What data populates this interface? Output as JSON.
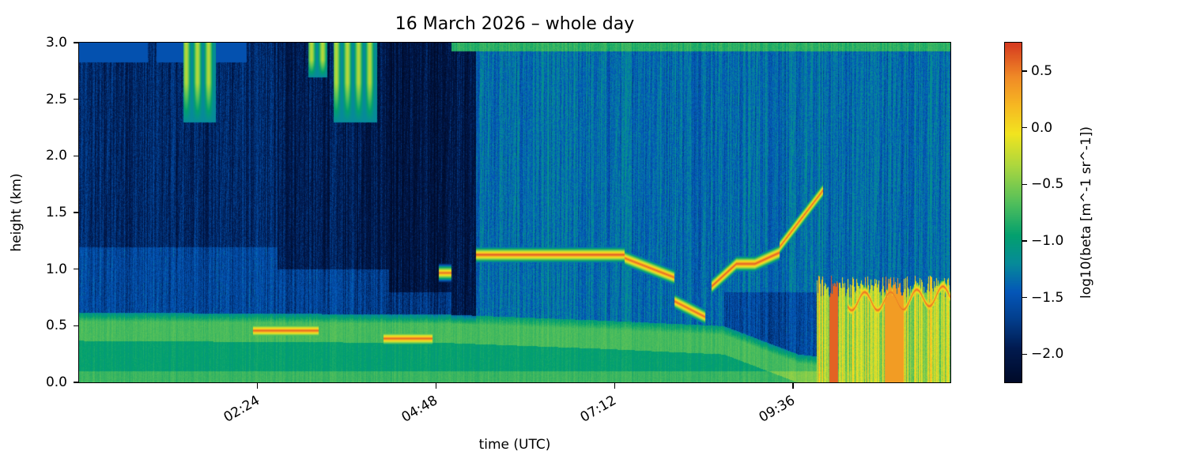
{
  "chart_data": {
    "type": "heatmap",
    "title": "16 March 2026 – whole day",
    "xlabel": "time (UTC)",
    "ylabel": "height (km)",
    "colorbar_label": "log10(beta [m^-1 sr^-1])",
    "xlim_minutes": [
      0,
      703
    ],
    "ylim": [
      0.0,
      3.0
    ],
    "clim": [
      -2.25,
      0.75
    ],
    "colormap": "blue-green-yellow-red (ceilometer backscatter)",
    "x_ticks": [
      {
        "label": "02:24",
        "minutes": 144
      },
      {
        "label": "04:48",
        "minutes": 288
      },
      {
        "label": "07:12",
        "minutes": 432
      },
      {
        "label": "09:36",
        "minutes": 576
      }
    ],
    "y_ticks": [
      {
        "label": "0.0",
        "value": 0.0
      },
      {
        "label": "0.5",
        "value": 0.5
      },
      {
        "label": "1.0",
        "value": 1.0
      },
      {
        "label": "1.5",
        "value": 1.5
      },
      {
        "label": "2.0",
        "value": 2.0
      },
      {
        "label": "2.5",
        "value": 2.5
      },
      {
        "label": "3.0",
        "value": 3.0
      }
    ],
    "colorbar_ticks": [
      {
        "label": "0.5",
        "value": 0.5
      },
      {
        "label": "0.0",
        "value": 0.0
      },
      {
        "label": "−0.5",
        "value": -0.5
      },
      {
        "label": "−1.0",
        "value": -1.0
      },
      {
        "label": "−1.5",
        "value": -1.5
      },
      {
        "label": "−2.0",
        "value": -2.0
      }
    ],
    "colormap_stops": [
      {
        "v": -2.25,
        "color": "#000a28"
      },
      {
        "v": -1.95,
        "color": "#011a4f"
      },
      {
        "v": -1.7,
        "color": "#023d8a"
      },
      {
        "v": -1.45,
        "color": "#0456b8"
      },
      {
        "v": -1.2,
        "color": "#068a9a"
      },
      {
        "v": -0.95,
        "color": "#03a06e"
      },
      {
        "v": -0.65,
        "color": "#55c05a"
      },
      {
        "v": -0.35,
        "color": "#a8d640"
      },
      {
        "v": -0.05,
        "color": "#f2e41f"
      },
      {
        "v": 0.2,
        "color": "#f6b822"
      },
      {
        "v": 0.45,
        "color": "#f08a26"
      },
      {
        "v": 0.75,
        "color": "#d63a20"
      }
    ],
    "layers": {
      "surface_aerosol_layer": {
        "top_km_by_time": [
          [
            0,
            0.62
          ],
          [
            300,
            0.6
          ],
          [
            420,
            0.55
          ],
          [
            520,
            0.5
          ],
          [
            580,
            0.25
          ],
          [
            620,
            0.2
          ],
          [
            703,
            0.7
          ]
        ],
        "value": -0.8
      },
      "cloud_base_segments": [
        {
          "t_start": 140,
          "t_end": 193,
          "height_km": 0.46,
          "value": 0.6
        },
        {
          "t_start": 245,
          "t_end": 285,
          "height_km": 0.39,
          "value": 0.6
        },
        {
          "t_start": 290,
          "t_end": 300,
          "height_km": 0.97,
          "value": 0.55
        },
        {
          "t_start": 320,
          "t_end": 440,
          "height_km": 1.13,
          "value": 0.65
        },
        {
          "t_start": 440,
          "t_end": 480,
          "height_km": 0.95,
          "value": 0.6
        },
        {
          "t_start": 480,
          "t_end": 505,
          "height_km": 0.64,
          "value": 0.6
        },
        {
          "t_start": 510,
          "t_end": 565,
          "height_km": 1.05,
          "value": 0.65
        },
        {
          "t_start": 565,
          "t_end": 600,
          "height_km": 1.45,
          "value": 0.6
        },
        {
          "t_start": 620,
          "t_end": 703,
          "height_km": 0.82,
          "value": 0.6
        }
      ],
      "precipitation_region": {
        "t_start": 595,
        "t_end": 703,
        "height_km": [
          0.0,
          0.85
        ],
        "value": 0.1
      },
      "upper_virga": [
        {
          "t_start": 84,
          "t_end": 110,
          "height_km": [
            2.3,
            3.0
          ]
        },
        {
          "t_start": 185,
          "t_end": 200,
          "height_km": [
            2.7,
            3.0
          ]
        },
        {
          "t_start": 205,
          "t_end": 240,
          "height_km": [
            2.3,
            3.0
          ]
        }
      ],
      "dark_clear_air_period": {
        "t_start": 0,
        "t_end": 320,
        "value": -2.0
      },
      "missing_data_top": {
        "t_start": 0,
        "t_end": 135,
        "height_km": [
          2.83,
          3.0
        ],
        "value": -1.5
      }
    }
  }
}
